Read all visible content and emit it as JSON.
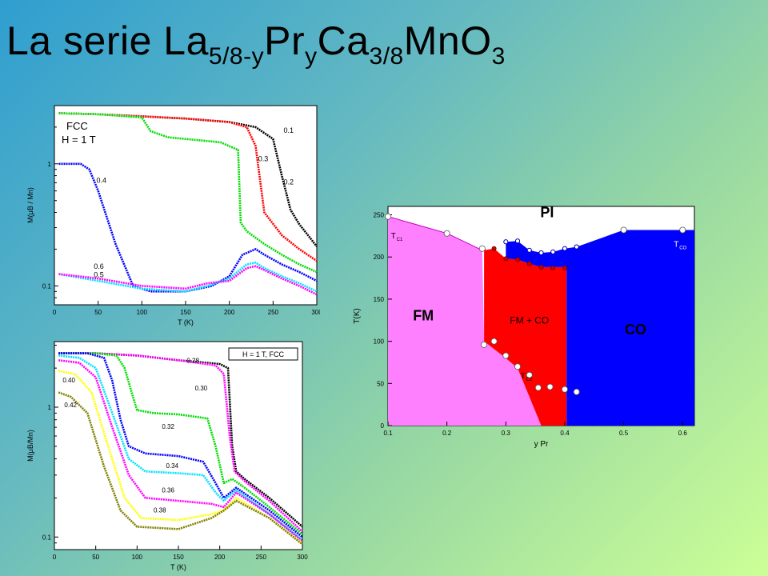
{
  "title": {
    "pre": "La serie La",
    "sub1": "5/8-y",
    "mid1": "Pr",
    "sub2": "y",
    "mid2": "Ca",
    "sub3": "3/8",
    "post": "MnO",
    "sub4": "3"
  },
  "chart_data": [
    {
      "type": "line",
      "id": "top-left",
      "annotation": [
        "FCC",
        "H = 1 T"
      ],
      "xlabel": "T (K)",
      "ylabel": "M(μB / Mn)",
      "xlim": [
        0,
        300
      ],
      "xticks": [
        0,
        50,
        100,
        150,
        200,
        250,
        300
      ],
      "yscale": "log",
      "ylim": [
        0.07,
        3
      ],
      "yticks": [
        0.1,
        1
      ],
      "series": [
        {
          "name": "0.1",
          "color": "#000000",
          "x": [
            5,
            50,
            100,
            150,
            200,
            230,
            250,
            260,
            270,
            280,
            290,
            300
          ],
          "y": [
            2.6,
            2.55,
            2.45,
            2.35,
            2.2,
            2.0,
            1.6,
            0.8,
            0.42,
            0.32,
            0.26,
            0.21
          ]
        },
        {
          "name": "0.2",
          "color": "#ff0000",
          "x": [
            5,
            50,
            100,
            150,
            200,
            220,
            230,
            240,
            260,
            280,
            300
          ],
          "y": [
            2.6,
            2.55,
            2.45,
            2.35,
            2.2,
            2.0,
            1.4,
            0.4,
            0.26,
            0.2,
            0.16
          ]
        },
        {
          "name": "0.3",
          "color": "#00dd00",
          "x": [
            5,
            50,
            100,
            110,
            130,
            150,
            190,
            210,
            213,
            220,
            240,
            260,
            280,
            300
          ],
          "y": [
            2.6,
            2.55,
            2.4,
            1.85,
            1.65,
            1.6,
            1.5,
            1.3,
            0.33,
            0.28,
            0.22,
            0.18,
            0.15,
            0.13
          ]
        },
        {
          "name": "0.4",
          "color": "#0000ff",
          "x": [
            5,
            30,
            40,
            50,
            70,
            90,
            110,
            150,
            180,
            200,
            215,
            230,
            240,
            260,
            280,
            300
          ],
          "y": [
            1.0,
            1.0,
            0.9,
            0.6,
            0.22,
            0.1,
            0.09,
            0.09,
            0.1,
            0.12,
            0.18,
            0.2,
            0.18,
            0.15,
            0.13,
            0.11
          ]
        },
        {
          "name": "0.5",
          "color": "#00e0ff",
          "x": [
            5,
            50,
            100,
            150,
            175,
            200,
            220,
            230,
            240,
            260,
            280,
            300
          ],
          "y": [
            0.125,
            0.11,
            0.095,
            0.09,
            0.1,
            0.115,
            0.15,
            0.155,
            0.14,
            0.12,
            0.105,
            0.09
          ]
        },
        {
          "name": "0.6",
          "color": "#ff00ff",
          "x": [
            5,
            50,
            100,
            150,
            175,
            200,
            220,
            230,
            240,
            260,
            280,
            300
          ],
          "y": [
            0.125,
            0.115,
            0.1,
            0.095,
            0.105,
            0.11,
            0.14,
            0.145,
            0.135,
            0.115,
            0.1,
            0.085
          ]
        }
      ]
    },
    {
      "type": "line",
      "id": "bottom-left",
      "annotation": [
        "H = 1 T, FCC"
      ],
      "xlabel": "T (K)",
      "ylabel": "M(μB/Mn)",
      "xlim": [
        0,
        300
      ],
      "xticks": [
        0,
        50,
        100,
        150,
        200,
        250,
        300
      ],
      "yscale": "log",
      "ylim": [
        0.08,
        3.2
      ],
      "yticks": [
        0.1,
        1
      ],
      "series": [
        {
          "name": "0.28",
          "color": "#000000",
          "x": [
            5,
            50,
            100,
            150,
            200,
            210,
            215,
            220,
            230,
            260,
            300
          ],
          "y": [
            2.6,
            2.6,
            2.5,
            2.3,
            2.15,
            2.0,
            0.5,
            0.32,
            0.28,
            0.2,
            0.12
          ]
        },
        {
          "name": "0.30",
          "color": "#ff00ff",
          "x": [
            5,
            50,
            100,
            150,
            195,
            205,
            212,
            218,
            230,
            260,
            300
          ],
          "y": [
            2.6,
            2.6,
            2.5,
            2.3,
            2.1,
            1.8,
            0.6,
            0.32,
            0.27,
            0.19,
            0.11
          ]
        },
        {
          "name": "0.32",
          "color": "#00dd00",
          "x": [
            5,
            50,
            75,
            85,
            95,
            100,
            120,
            150,
            185,
            195,
            205,
            215,
            230,
            260,
            300
          ],
          "y": [
            2.6,
            2.6,
            2.5,
            2.0,
            1.2,
            0.95,
            0.9,
            0.88,
            0.82,
            0.5,
            0.26,
            0.28,
            0.24,
            0.17,
            0.105
          ]
        },
        {
          "name": "0.34",
          "color": "#0000ff",
          "x": [
            5,
            40,
            60,
            70,
            80,
            90,
            110,
            150,
            180,
            195,
            205,
            220,
            260,
            300
          ],
          "y": [
            2.6,
            2.6,
            2.4,
            1.6,
            0.8,
            0.5,
            0.44,
            0.42,
            0.38,
            0.26,
            0.2,
            0.24,
            0.16,
            0.1
          ]
        },
        {
          "name": "0.36",
          "color": "#00e0ff",
          "x": [
            5,
            30,
            50,
            70,
            90,
            110,
            150,
            180,
            195,
            205,
            220,
            260,
            300
          ],
          "y": [
            2.5,
            2.4,
            2.0,
            0.9,
            0.4,
            0.32,
            0.31,
            0.3,
            0.22,
            0.19,
            0.23,
            0.15,
            0.095
          ]
        },
        {
          "name": "0.38",
          "color": "#ff00ff",
          "x": [
            5,
            30,
            50,
            70,
            90,
            110,
            150,
            190,
            205,
            220,
            260,
            300
          ],
          "y": [
            2.3,
            2.2,
            1.7,
            0.7,
            0.3,
            0.2,
            0.19,
            0.18,
            0.17,
            0.22,
            0.15,
            0.093
          ]
        },
        {
          "name": "0.40",
          "color": "#ffff00",
          "x": [
            5,
            25,
            45,
            65,
            85,
            105,
            150,
            190,
            205,
            220,
            260,
            300
          ],
          "y": [
            1.9,
            1.8,
            1.3,
            0.5,
            0.2,
            0.14,
            0.135,
            0.15,
            0.16,
            0.2,
            0.14,
            0.09
          ]
        },
        {
          "name": "0.42",
          "color": "#808000",
          "x": [
            5,
            20,
            40,
            60,
            80,
            100,
            150,
            190,
            205,
            220,
            260,
            300
          ],
          "y": [
            1.3,
            1.2,
            0.9,
            0.35,
            0.16,
            0.12,
            0.115,
            0.14,
            0.16,
            0.19,
            0.14,
            0.088
          ]
        }
      ],
      "labels": [
        {
          "text": "0.28",
          "x": 160,
          "y": 2.2
        },
        {
          "text": "0.30",
          "x": 170,
          "y": 1.35
        },
        {
          "text": "0.32",
          "x": 130,
          "y": 0.68
        },
        {
          "text": "0.34",
          "x": 135,
          "y": 0.34
        },
        {
          "text": "0.36",
          "x": 130,
          "y": 0.22
        },
        {
          "text": "0.38",
          "x": 120,
          "y": 0.155
        },
        {
          "text": "0.40",
          "x": 10,
          "y": 1.55
        },
        {
          "text": "0.42",
          "x": 12,
          "y": 1.0
        }
      ]
    },
    {
      "type": "area",
      "id": "phase-diagram",
      "xlabel": "y Pr",
      "ylabel": "T(K)",
      "xlim": [
        0.1,
        0.62
      ],
      "xticks": [
        0.1,
        0.2,
        0.3,
        0.4,
        0.5,
        0.6
      ],
      "ylim": [
        0,
        260
      ],
      "yticks": [
        0,
        50,
        100,
        150,
        200,
        250
      ],
      "regions": [
        {
          "name": "PI",
          "color": "#ffffff",
          "label_at": [
            0.37,
            247
          ]
        },
        {
          "name": "FM",
          "color": "#ff80ff",
          "label_at": [
            0.16,
            125
          ]
        },
        {
          "name": "FM + CO",
          "color": "#ff0000",
          "label_at": [
            0.34,
            121
          ]
        },
        {
          "name": "CO",
          "color": "#0000ff",
          "label_at": [
            0.52,
            108
          ]
        }
      ],
      "line_labels": [
        {
          "text": "T",
          "sub": "C1",
          "x": 0.105,
          "y": 222
        },
        {
          "text": "T",
          "sub": "CO",
          "x": 0.585,
          "y": 212
        },
        {
          "text": "T",
          "sub": "C2",
          "x": 0.325,
          "y": 56
        }
      ],
      "fm_boundary": [
        [
          0.1,
          248
        ],
        [
          0.2,
          228
        ],
        [
          0.26,
          208
        ],
        [
          0.263,
          100
        ],
        [
          0.3,
          80
        ],
        [
          0.32,
          68
        ],
        [
          0.36,
          0
        ]
      ],
      "co_top": [
        [
          0.3,
          218
        ],
        [
          0.32,
          219
        ],
        [
          0.34,
          208
        ],
        [
          0.36,
          205
        ],
        [
          0.38,
          206
        ],
        [
          0.4,
          210
        ],
        [
          0.42,
          212
        ],
        [
          0.5,
          232
        ],
        [
          0.62,
          232
        ]
      ],
      "red_top": [
        [
          0.263,
          208
        ],
        [
          0.28,
          210
        ],
        [
          0.3,
          198
        ],
        [
          0.32,
          197
        ],
        [
          0.34,
          192
        ],
        [
          0.36,
          188
        ],
        [
          0.4,
          188
        ]
      ],
      "co_left": 0.403,
      "points_white": [
        [
          0.1,
          248
        ],
        [
          0.2,
          228
        ],
        [
          0.26,
          210
        ],
        [
          0.263,
          96
        ],
        [
          0.28,
          100
        ],
        [
          0.3,
          83
        ],
        [
          0.32,
          70
        ],
        [
          0.34,
          60
        ],
        [
          0.355,
          45
        ],
        [
          0.375,
          46
        ],
        [
          0.4,
          43
        ],
        [
          0.42,
          40
        ],
        [
          0.5,
          232
        ],
        [
          0.6,
          232
        ]
      ],
      "points_blue": [
        [
          0.3,
          218
        ],
        [
          0.32,
          219
        ],
        [
          0.34,
          208
        ],
        [
          0.36,
          205
        ],
        [
          0.38,
          206
        ],
        [
          0.4,
          210
        ],
        [
          0.42,
          212
        ]
      ],
      "points_red": [
        [
          0.28,
          210
        ],
        [
          0.3,
          198
        ],
        [
          0.32,
          197
        ],
        [
          0.34,
          192
        ],
        [
          0.36,
          188
        ],
        [
          0.38,
          187
        ],
        [
          0.4,
          187
        ]
      ]
    }
  ]
}
